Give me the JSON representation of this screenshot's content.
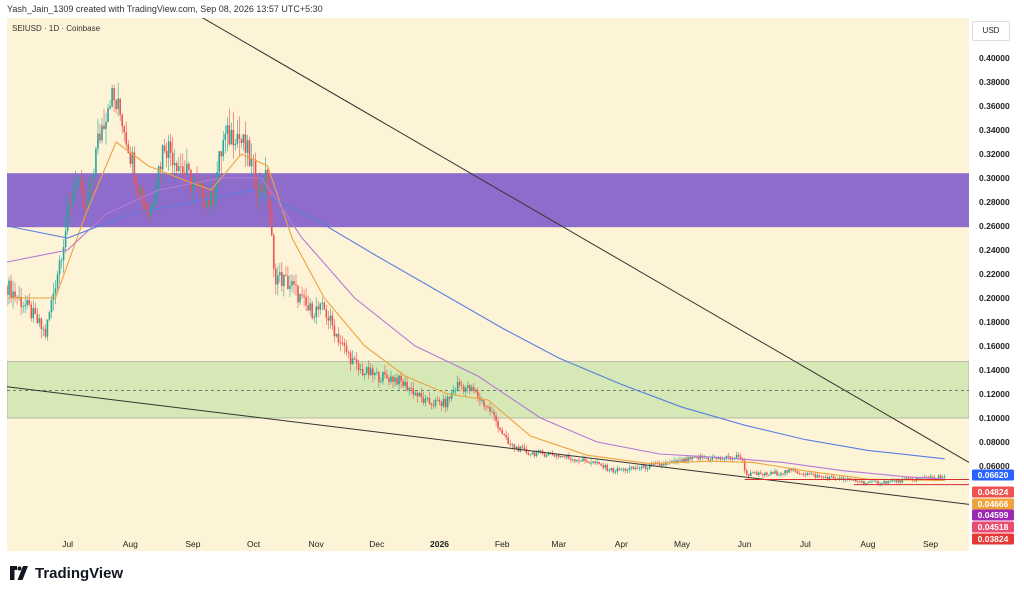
{
  "header": {
    "title": "Yash_Jain_1309 created with TradingView.com, Sep 08, 2026 13:57 UTC+5:30",
    "symbol": "SEIUSD · 1D · Coinbase",
    "currency": "USD"
  },
  "footer": {
    "brand": "TradingView",
    "logo_icon": "tradingview-logo-icon"
  },
  "colors": {
    "background": "#fdf3d7",
    "purple_zone": "#8e6ccb",
    "green_zone": "#d5e8b5",
    "up_candle": "#26a69a",
    "down_candle": "#ef5350",
    "ma_orange": "#f0a23b",
    "ma_purple": "#b57ad6",
    "ma_blue": "#5b7fe0",
    "trendline": "#333333",
    "support_line": "#d32f2f"
  },
  "chart_data": {
    "type": "candlestick",
    "ylim": [
      0.025,
      0.42
    ],
    "y_ticks": [
      "0.40000",
      "0.38000",
      "0.36000",
      "0.34000",
      "0.32000",
      "0.30000",
      "0.28000",
      "0.26000",
      "0.24000",
      "0.22000",
      "0.20000",
      "0.18000",
      "0.16000",
      "0.14000",
      "0.12000",
      "0.10000",
      "0.08000",
      "0.06000"
    ],
    "x_ticks": [
      {
        "label": "Jul",
        "date": "2025-07-01"
      },
      {
        "label": "Aug",
        "date": "2025-08-01"
      },
      {
        "label": "Sep",
        "date": "2025-09-01"
      },
      {
        "label": "Oct",
        "date": "2025-10-01"
      },
      {
        "label": "Nov",
        "date": "2025-11-01"
      },
      {
        "label": "Dec",
        "date": "2025-12-01"
      },
      {
        "label": "2026",
        "date": "2026-01-01",
        "bold": true
      },
      {
        "label": "Feb",
        "date": "2026-02-01"
      },
      {
        "label": "Mar",
        "date": "2026-03-01"
      },
      {
        "label": "Apr",
        "date": "2026-04-01"
      },
      {
        "label": "May",
        "date": "2026-05-01"
      },
      {
        "label": "Jun",
        "date": "2026-06-01"
      },
      {
        "label": "Jul",
        "date": "2026-07-01"
      },
      {
        "label": "Aug",
        "date": "2026-08-01"
      },
      {
        "label": "Sep",
        "date": "2026-09-01"
      }
    ],
    "x_range": [
      "2025-06-01",
      "2026-09-20"
    ],
    "zones": [
      {
        "kind": "resistance",
        "price_low": 0.259,
        "price_high": 0.304,
        "color": "#8e6ccb"
      },
      {
        "kind": "support",
        "price_low": 0.1,
        "price_high": 0.147,
        "color": "#d5e8b5"
      }
    ],
    "dashed_line": 0.123,
    "trendlines": [
      {
        "from": {
          "date": "2025-08-25",
          "price": 0.445
        },
        "to": {
          "date": "2026-09-20",
          "price": 0.063
        }
      },
      {
        "from": {
          "date": "2025-06-01",
          "price": 0.126
        },
        "to": {
          "date": "2026-09-20",
          "price": 0.028
        }
      }
    ],
    "support_lines": [
      {
        "from": "2026-06-01",
        "to": "2026-09-20",
        "price": 0.0487
      },
      {
        "from": "2026-07-25",
        "to": "2026-09-20",
        "price": 0.0445
      }
    ],
    "price_tags": [
      {
        "label": "0.06620",
        "price": 0.0662,
        "color": "#2962ff"
      },
      {
        "label": "0.04824",
        "price": 0.04824,
        "color": "#ef5350"
      },
      {
        "label": "0.04666",
        "price": 0.04666,
        "color": "#f0a23b"
      },
      {
        "label": "0.04599",
        "price": 0.04599,
        "color": "#9c27b0"
      },
      {
        "label": "0.04518",
        "price": 0.04518,
        "color": "#e84c71"
      },
      {
        "label": "0.03824",
        "price": 0.03824,
        "color": "#e53935"
      }
    ],
    "price_path": [
      [
        "2025-06-01",
        0.21
      ],
      [
        "2025-06-12",
        0.19
      ],
      [
        "2025-06-20",
        0.17
      ],
      [
        "2025-06-28",
        0.24
      ],
      [
        "2025-07-05",
        0.3
      ],
      [
        "2025-07-10",
        0.27
      ],
      [
        "2025-07-16",
        0.33
      ],
      [
        "2025-07-22",
        0.37
      ],
      [
        "2025-07-28",
        0.35
      ],
      [
        "2025-08-04",
        0.3
      ],
      [
        "2025-08-10",
        0.27
      ],
      [
        "2025-08-18",
        0.33
      ],
      [
        "2025-08-26",
        0.31
      ],
      [
        "2025-09-03",
        0.29
      ],
      [
        "2025-09-10",
        0.28
      ],
      [
        "2025-09-16",
        0.33
      ],
      [
        "2025-09-22",
        0.34
      ],
      [
        "2025-09-28",
        0.32
      ],
      [
        "2025-10-04",
        0.29
      ],
      [
        "2025-10-08",
        0.3
      ],
      [
        "2025-10-11",
        0.22
      ],
      [
        "2025-10-20",
        0.21
      ],
      [
        "2025-10-28",
        0.19
      ],
      [
        "2025-11-05",
        0.19
      ],
      [
        "2025-11-14",
        0.16
      ],
      [
        "2025-11-22",
        0.14
      ],
      [
        "2025-12-01",
        0.135
      ],
      [
        "2025-12-10",
        0.133
      ],
      [
        "2025-12-18",
        0.124
      ],
      [
        "2025-12-25",
        0.113
      ],
      [
        "2026-01-04",
        0.112
      ],
      [
        "2026-01-10",
        0.128
      ],
      [
        "2026-01-18",
        0.122
      ],
      [
        "2026-01-27",
        0.104
      ],
      [
        "2026-02-04",
        0.078
      ],
      [
        "2026-02-14",
        0.071
      ],
      [
        "2026-02-25",
        0.07
      ],
      [
        "2026-03-08",
        0.066
      ],
      [
        "2026-03-18",
        0.063
      ],
      [
        "2026-03-28",
        0.056
      ],
      [
        "2026-04-08",
        0.058
      ],
      [
        "2026-04-20",
        0.061
      ],
      [
        "2026-05-01",
        0.064
      ],
      [
        "2026-05-10",
        0.067
      ],
      [
        "2026-05-20",
        0.066
      ],
      [
        "2026-05-30",
        0.068
      ],
      [
        "2026-06-02",
        0.053
      ],
      [
        "2026-06-12",
        0.053
      ],
      [
        "2026-06-25",
        0.056
      ],
      [
        "2026-07-08",
        0.051
      ],
      [
        "2026-07-20",
        0.049
      ],
      [
        "2026-08-01",
        0.046
      ],
      [
        "2026-08-12",
        0.047
      ],
      [
        "2026-08-24",
        0.049
      ],
      [
        "2026-09-01",
        0.051
      ],
      [
        "2026-09-08",
        0.05
      ]
    ],
    "moving_averages": [
      {
        "color": "#f0a23b",
        "points": [
          [
            "2025-06-01",
            0.2
          ],
          [
            "2025-06-25",
            0.2
          ],
          [
            "2025-07-10",
            0.27
          ],
          [
            "2025-07-25",
            0.33
          ],
          [
            "2025-08-10",
            0.31
          ],
          [
            "2025-08-25",
            0.3
          ],
          [
            "2025-09-10",
            0.29
          ],
          [
            "2025-09-25",
            0.32
          ],
          [
            "2025-10-08",
            0.31
          ],
          [
            "2025-10-20",
            0.25
          ],
          [
            "2025-11-05",
            0.2
          ],
          [
            "2025-11-25",
            0.16
          ],
          [
            "2025-12-15",
            0.135
          ],
          [
            "2026-01-05",
            0.12
          ],
          [
            "2026-01-25",
            0.115
          ],
          [
            "2026-02-15",
            0.085
          ],
          [
            "2026-03-15",
            0.069
          ],
          [
            "2026-04-15",
            0.062
          ],
          [
            "2026-05-15",
            0.064
          ],
          [
            "2026-06-05",
            0.063
          ],
          [
            "2026-07-01",
            0.056
          ],
          [
            "2026-08-01",
            0.049
          ],
          [
            "2026-09-08",
            0.048
          ]
        ]
      },
      {
        "color": "#b57ad6",
        "points": [
          [
            "2025-06-01",
            0.23
          ],
          [
            "2025-07-01",
            0.24
          ],
          [
            "2025-07-20",
            0.27
          ],
          [
            "2025-08-15",
            0.29
          ],
          [
            "2025-09-15",
            0.3
          ],
          [
            "2025-10-05",
            0.3
          ],
          [
            "2025-10-25",
            0.25
          ],
          [
            "2025-11-20",
            0.2
          ],
          [
            "2025-12-20",
            0.16
          ],
          [
            "2026-01-20",
            0.135
          ],
          [
            "2026-02-20",
            0.1
          ],
          [
            "2026-03-20",
            0.08
          ],
          [
            "2026-04-20",
            0.07
          ],
          [
            "2026-05-20",
            0.067
          ],
          [
            "2026-06-20",
            0.063
          ],
          [
            "2026-07-20",
            0.056
          ],
          [
            "2026-08-20",
            0.051
          ],
          [
            "2026-09-08",
            0.049
          ]
        ]
      },
      {
        "color": "#5b7fe0",
        "points": [
          [
            "2025-06-01",
            0.26
          ],
          [
            "2025-07-01",
            0.25
          ],
          [
            "2025-08-01",
            0.27
          ],
          [
            "2025-09-01",
            0.28
          ],
          [
            "2025-10-01",
            0.29
          ],
          [
            "2025-11-01",
            0.265
          ],
          [
            "2025-12-01",
            0.235
          ],
          [
            "2026-01-01",
            0.205
          ],
          [
            "2026-02-01",
            0.175
          ],
          [
            "2026-03-01",
            0.15
          ],
          [
            "2026-04-01",
            0.128
          ],
          [
            "2026-05-01",
            0.109
          ],
          [
            "2026-06-01",
            0.094
          ],
          [
            "2026-07-01",
            0.082
          ],
          [
            "2026-08-01",
            0.073
          ],
          [
            "2026-09-08",
            0.066
          ]
        ]
      }
    ]
  }
}
